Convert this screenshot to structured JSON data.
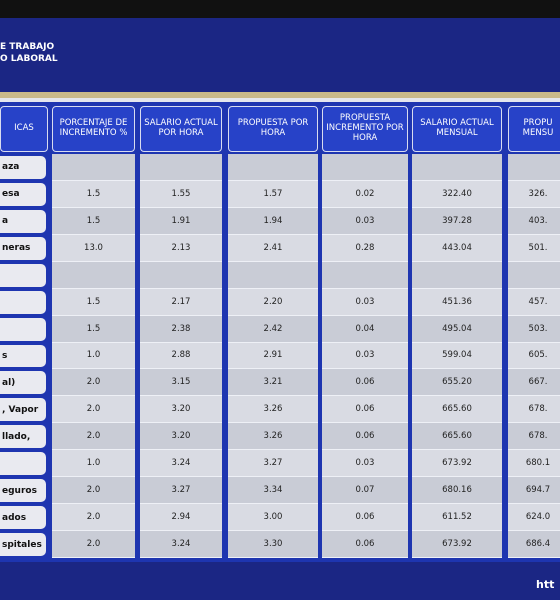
{
  "header": {
    "lines": [
      "E TRABAJO",
      "O LABORAL"
    ]
  },
  "table": {
    "columns": [
      "ICAS",
      "PORCENTAJE DE INCREMENTO %",
      "SALARIO ACTUAL POR HORA",
      "PROPUESTA POR HORA",
      "PROPUESTA INCREMENTO POR HORA",
      "SALARIO ACTUAL MENSUAL",
      "PROPU MENSU"
    ],
    "rows": [
      [
        "aza",
        null,
        null,
        null,
        null,
        null,
        null
      ],
      [
        "esa",
        "1.5",
        "1.55",
        "1.57",
        "0.02",
        "322.40",
        "326."
      ],
      [
        "a",
        "1.5",
        "1.91",
        "1.94",
        "0.03",
        "397.28",
        "403."
      ],
      [
        "neras",
        "13.0",
        "2.13",
        "2.41",
        "0.28",
        "443.04",
        "501."
      ],
      [
        null,
        null,
        null,
        null,
        null,
        null,
        null
      ],
      [
        null,
        "1.5",
        "2.17",
        "2.20",
        "0.03",
        "451.36",
        "457."
      ],
      [
        null,
        "1.5",
        "2.38",
        "2.42",
        "0.04",
        "495.04",
        "503."
      ],
      [
        "s",
        "1.0",
        "2.88",
        "2.91",
        "0.03",
        "599.04",
        "605."
      ],
      [
        "al)",
        "2.0",
        "3.15",
        "3.21",
        "0.06",
        "655.20",
        "667."
      ],
      [
        ", Vapor",
        "2.0",
        "3.20",
        "3.26",
        "0.06",
        "665.60",
        "678."
      ],
      [
        "llado,",
        "2.0",
        "3.20",
        "3.26",
        "0.06",
        "665.60",
        "678."
      ],
      [
        null,
        "1.0",
        "3.24",
        "3.27",
        "0.03",
        "673.92",
        "680.1"
      ],
      [
        "eguros",
        "2.0",
        "3.27",
        "3.34",
        "0.07",
        "680.16",
        "694.7"
      ],
      [
        "ados",
        "2.0",
        "2.94",
        "3.00",
        "0.06",
        "611.52",
        "624.0"
      ],
      [
        "spitales",
        "2.0",
        "3.24",
        "3.30",
        "0.06",
        "673.92",
        "686.4"
      ]
    ]
  },
  "footer": {
    "text": "htt"
  }
}
